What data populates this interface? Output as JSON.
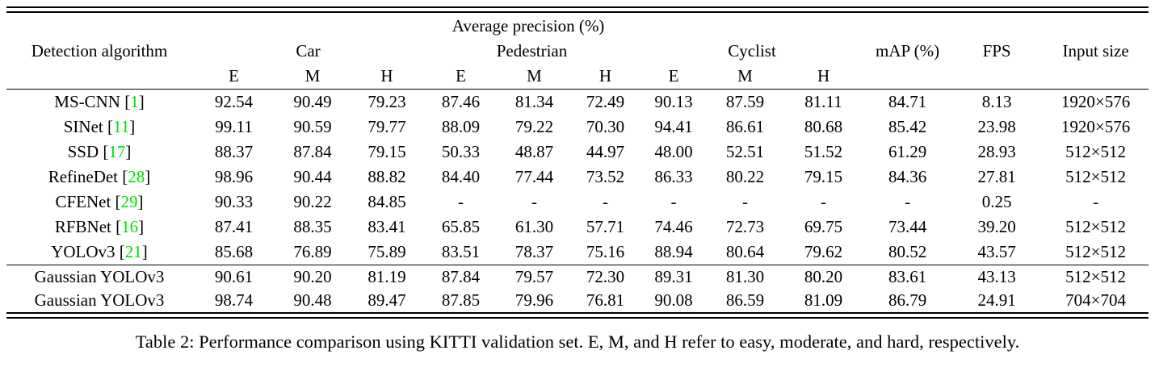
{
  "table": {
    "super_header": "Average precision (%)",
    "headers": {
      "algorithm": "Detection algorithm",
      "car": "Car",
      "pedestrian": "Pedestrian",
      "cyclist": "Cyclist",
      "map": "mAP (%)",
      "fps": "FPS",
      "input_size": "Input size"
    },
    "sub_headers": [
      "E",
      "M",
      "H",
      "E",
      "M",
      "H",
      "E",
      "M",
      "H"
    ],
    "rows": [
      {
        "name": "MS-CNN",
        "cite": "1",
        "group": 1,
        "values": [
          "92.54",
          "90.49",
          "79.23",
          "87.46",
          "81.34",
          "72.49",
          "90.13",
          "87.59",
          "81.11",
          "84.71",
          "8.13",
          "1920×576"
        ]
      },
      {
        "name": "SINet",
        "cite": "11",
        "group": 1,
        "values": [
          "99.11",
          "90.59",
          "79.77",
          "88.09",
          "79.22",
          "70.30",
          "94.41",
          "86.61",
          "80.68",
          "85.42",
          "23.98",
          "1920×576"
        ]
      },
      {
        "name": "SSD",
        "cite": "17",
        "group": 1,
        "values": [
          "88.37",
          "87.84",
          "79.15",
          "50.33",
          "48.87",
          "44.97",
          "48.00",
          "52.51",
          "51.52",
          "61.29",
          "28.93",
          "512×512"
        ]
      },
      {
        "name": "RefineDet",
        "cite": "28",
        "group": 1,
        "values": [
          "98.96",
          "90.44",
          "88.82",
          "84.40",
          "77.44",
          "73.52",
          "86.33",
          "80.22",
          "79.15",
          "84.36",
          "27.81",
          "512×512"
        ]
      },
      {
        "name": "CFENet",
        "cite": "29",
        "group": 1,
        "values": [
          "90.33",
          "90.22",
          "84.85",
          "-",
          "-",
          "-",
          "-",
          "-",
          "-",
          "-",
          "0.25",
          "-"
        ]
      },
      {
        "name": "RFBNet",
        "cite": "16",
        "group": 1,
        "values": [
          "87.41",
          "88.35",
          "83.41",
          "65.85",
          "61.30",
          "57.71",
          "74.46",
          "72.73",
          "69.75",
          "73.44",
          "39.20",
          "512×512"
        ]
      },
      {
        "name": "YOLOv3",
        "cite": "21",
        "group": 1,
        "values": [
          "85.68",
          "76.89",
          "75.89",
          "83.51",
          "78.37",
          "75.16",
          "88.94",
          "80.64",
          "79.62",
          "80.52",
          "43.57",
          "512×512"
        ]
      },
      {
        "name": "Gaussian YOLOv3",
        "cite": null,
        "group": 2,
        "values": [
          "90.61",
          "90.20",
          "81.19",
          "87.84",
          "79.57",
          "72.30",
          "89.31",
          "81.30",
          "80.20",
          "83.61",
          "43.13",
          "512×512"
        ]
      },
      {
        "name": "Gaussian YOLOv3",
        "cite": null,
        "group": 2,
        "values": [
          "98.74",
          "90.48",
          "89.47",
          "87.85",
          "79.96",
          "76.81",
          "90.08",
          "86.59",
          "81.09",
          "86.79",
          "24.91",
          "704×704"
        ]
      }
    ],
    "caption": "Table 2: Performance comparison using KITTI validation set. E, M, and H refer to easy, moderate, and hard, respectively."
  },
  "colors": {
    "citation_green": "#00e000",
    "text": "#000000",
    "background": "#ffffff"
  }
}
